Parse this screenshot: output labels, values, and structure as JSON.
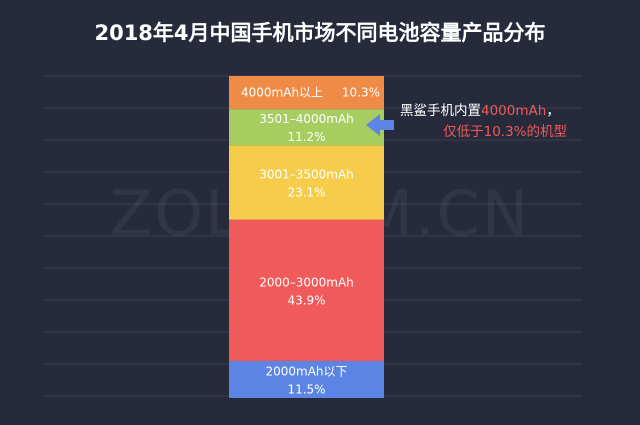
{
  "chart_data": {
    "type": "bar",
    "stacked": true,
    "title": "2018年4月中国手机市场不同电池容量产品分布",
    "unit": "%",
    "grid": true,
    "segments": [
      {
        "label": "2000mAh以下",
        "value_text": "11.5%",
        "value": 11.5,
        "color": "#5b84e4"
      },
      {
        "label": "2000–3000mAh",
        "value_text": "43.9%",
        "value": 43.9,
        "color": "#f05a5a"
      },
      {
        "label": "3001–3500mAh",
        "value_text": "23.1%",
        "value": 23.1,
        "color": "#f5cd4b"
      },
      {
        "label": "3501–4000mAh",
        "value_text": "11.2%",
        "value": 11.2,
        "color": "#a5cd5f"
      },
      {
        "label": "4000mAh以上",
        "value_text": "10.3%",
        "value": 10.3,
        "color": "#f08a47"
      }
    ],
    "annotation": {
      "line1_prefix": "黑鲨手机内置",
      "line1_highlight": "4000mAh",
      "line1_suffix": "，",
      "line2": "仅低于10.3%的机型",
      "arrow_color": "#5b84e4",
      "text_color": "#ffffff",
      "highlight_color": "#f05a5a"
    },
    "watermark": "ZOL.COM.CN"
  }
}
